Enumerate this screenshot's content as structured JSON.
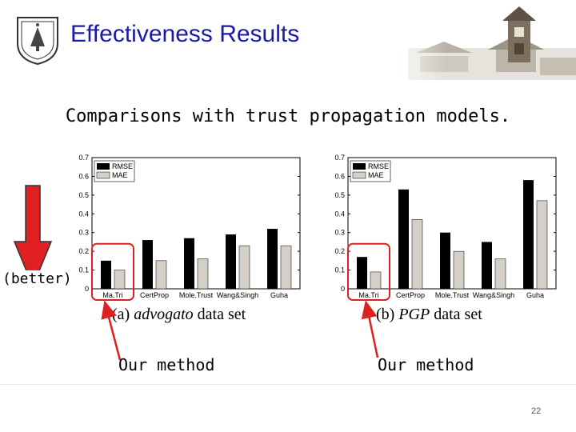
{
  "slide": {
    "title": "Effectiveness Results",
    "subtitle": "Comparisons with trust propagation models.",
    "better_label": "(better)",
    "page_number": "22"
  },
  "captions": {
    "left_prefix": "(a) ",
    "left_italic": "advogato",
    "left_suffix": " data set",
    "right_prefix": "(b) ",
    "right_italic": "PGP",
    "right_suffix": " data set"
  },
  "callouts": {
    "left": "Our method",
    "right": "Our method"
  },
  "colors": {
    "title": "#1a1aa8",
    "rmse": "#000000",
    "mae": "#d4d0c8",
    "highlight": "#e02020",
    "arrow": "#e02020"
  },
  "chart_data": [
    {
      "type": "bar",
      "categories": [
        "Ma.Tri",
        "CertProp",
        "Mole.Trust",
        "Wang&Singh",
        "Guha"
      ],
      "series": [
        {
          "name": "RMSE",
          "values": [
            0.15,
            0.26,
            0.27,
            0.29,
            0.32
          ]
        },
        {
          "name": "MAE",
          "values": [
            0.1,
            0.15,
            0.16,
            0.23,
            0.23
          ]
        }
      ],
      "yticks": [
        "0",
        "0.1",
        "0.2",
        "0.3",
        "0.4",
        "0.5",
        "0.6",
        "0.7"
      ],
      "ylim": [
        0,
        0.7
      ],
      "legend_position": "top-left",
      "highlight_category": "Ma.Tri"
    },
    {
      "type": "bar",
      "categories": [
        "Ma.Tri",
        "CertProp",
        "Mole.Trust",
        "Wang&Singh",
        "Guha"
      ],
      "series": [
        {
          "name": "RMSE",
          "values": [
            0.17,
            0.53,
            0.3,
            0.25,
            0.58
          ]
        },
        {
          "name": "MAE",
          "values": [
            0.09,
            0.37,
            0.2,
            0.16,
            0.47
          ]
        }
      ],
      "yticks": [
        "0",
        "0.1",
        "0.2",
        "0.3",
        "0.4",
        "0.5",
        "0.6",
        "0.7"
      ],
      "ylim": [
        0,
        0.7
      ],
      "legend_position": "top-left",
      "highlight_category": "Ma.Tri"
    }
  ]
}
